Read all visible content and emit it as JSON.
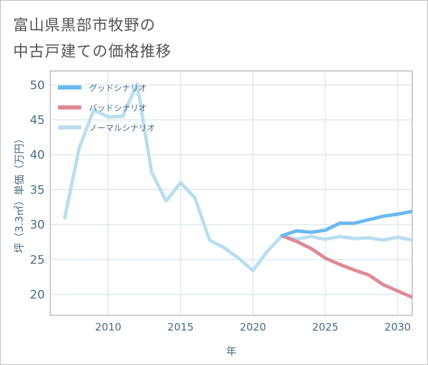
{
  "title_line1": "富山県黒部市牧野の",
  "title_line2": "中古戸建ての価格推移",
  "chart_data": {
    "type": "line",
    "xlabel": "年",
    "ylabel": "坪（3.3㎡）単価（万円）",
    "xlim": [
      2006,
      2031
    ],
    "ylim": [
      17,
      52
    ],
    "xticks": [
      2010,
      2015,
      2020,
      2025,
      2030
    ],
    "yticks": [
      20,
      25,
      30,
      35,
      40,
      45,
      50
    ],
    "grid": true,
    "legend_position": "top-left",
    "series": [
      {
        "name": "グッドシナリオ",
        "color": "#6cb8ef",
        "x": [
          2022,
          2023,
          2024,
          2025,
          2026,
          2027,
          2028,
          2029,
          2030,
          2031
        ],
        "y": [
          28.4,
          29.1,
          28.9,
          29.2,
          30.2,
          30.2,
          30.7,
          31.2,
          31.5,
          31.9
        ]
      },
      {
        "name": "バッドシナリオ",
        "color": "#dc8c96",
        "x": [
          2022,
          2023,
          2024,
          2025,
          2026,
          2027,
          2028,
          2029,
          2030,
          2031
        ],
        "y": [
          28.4,
          27.6,
          26.6,
          25.2,
          24.3,
          23.5,
          22.8,
          21.4,
          20.5,
          19.6
        ]
      },
      {
        "name": "ノーマルシナリオ",
        "color": "#b9deef",
        "x": [
          2007,
          2008,
          2009,
          2010,
          2011,
          2012,
          2013,
          2014,
          2015,
          2016,
          2017,
          2018,
          2019,
          2020,
          2021,
          2022,
          2023,
          2024,
          2025,
          2026,
          2027,
          2028,
          2029,
          2030,
          2031
        ],
        "y": [
          31.0,
          41.0,
          46.4,
          45.4,
          45.5,
          50.1,
          37.5,
          33.4,
          36.0,
          33.8,
          27.8,
          26.7,
          25.2,
          23.4,
          26.2,
          28.4,
          27.9,
          28.3,
          27.9,
          28.3,
          28.0,
          28.1,
          27.8,
          28.2,
          27.8
        ]
      }
    ]
  }
}
